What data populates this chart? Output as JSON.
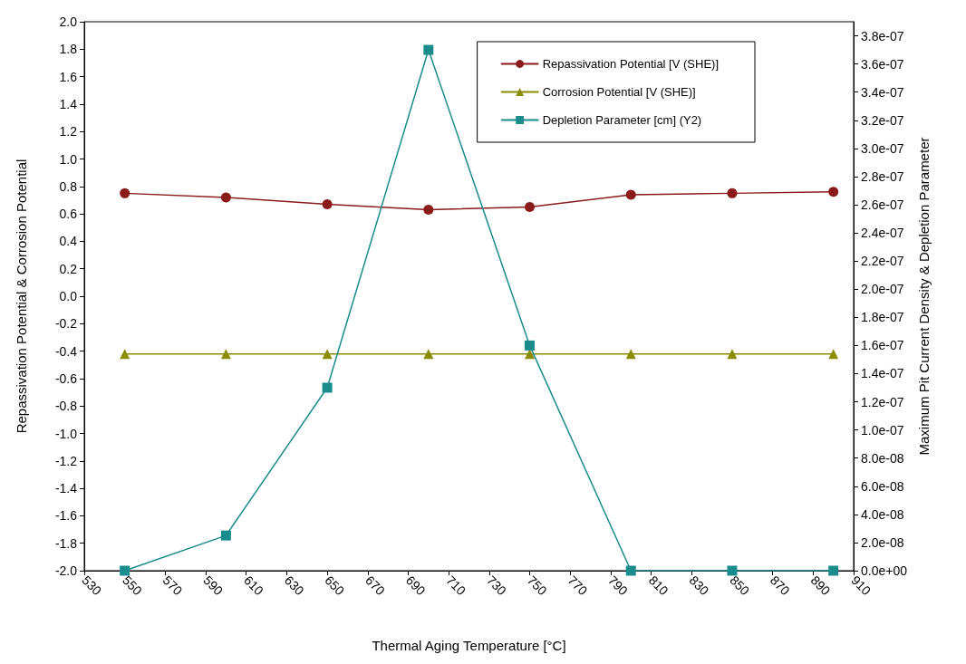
{
  "chart_data": {
    "type": "line",
    "xlabel": "Thermal Aging Temperature [°C]",
    "ylabel": "Repassivation Potential & Corrosion Potential",
    "y2label": "Maximum Pit Current Density & Depletion Parameter",
    "x": [
      550,
      600,
      650,
      700,
      750,
      800,
      850,
      900
    ],
    "series": [
      {
        "name": "Repassivation Potential [V (SHE)]",
        "color": "#8b1a1a",
        "marker": "circle",
        "values": [
          0.75,
          0.72,
          0.67,
          0.63,
          0.65,
          0.74,
          0.75,
          0.76
        ]
      },
      {
        "name": "Corrosion Potential [V (SHE)]",
        "color": "#8c8c00",
        "marker": "triangle",
        "values": [
          -0.42,
          -0.42,
          -0.42,
          -0.42,
          -0.42,
          -0.42,
          -0.42,
          -0.42
        ]
      },
      {
        "name": "Depletion Parameter [cm] (Y2)",
        "color": "#1a8c8c",
        "marker": "square",
        "axis": "y2",
        "values": [
          0,
          2.5e-08,
          1.3e-07,
          3.7e-07,
          1.6e-07,
          0,
          0,
          0
        ]
      }
    ],
    "xlim": [
      530,
      910
    ],
    "xticks": [
      530,
      550,
      570,
      590,
      610,
      630,
      650,
      670,
      690,
      710,
      730,
      750,
      770,
      790,
      810,
      830,
      850,
      870,
      890,
      910
    ],
    "ylim": [
      -2,
      2
    ],
    "yticks": [
      {
        "value": -2,
        "label": "-2.0"
      },
      {
        "value": -1.8,
        "label": "-1.8"
      },
      {
        "value": -1.6,
        "label": "-1.6"
      },
      {
        "value": -1.4,
        "label": "-1.4"
      },
      {
        "value": -1.2,
        "label": "-1.2"
      },
      {
        "value": -1,
        "label": "-1.0"
      },
      {
        "value": -0.8,
        "label": "-0.8"
      },
      {
        "value": -0.6,
        "label": "-0.6"
      },
      {
        "value": -0.4,
        "label": "-0.4"
      },
      {
        "value": -0.2,
        "label": "-0.2"
      },
      {
        "value": 0,
        "label": "0.0"
      },
      {
        "value": 0.2,
        "label": "0.2"
      },
      {
        "value": 0.4,
        "label": "0.4"
      },
      {
        "value": 0.6,
        "label": "0.6"
      },
      {
        "value": 0.8,
        "label": "0.8"
      },
      {
        "value": 1,
        "label": "1.0"
      },
      {
        "value": 1.2,
        "label": "1.2"
      },
      {
        "value": 1.4,
        "label": "1.4"
      },
      {
        "value": 1.6,
        "label": "1.6"
      },
      {
        "value": 1.8,
        "label": "1.8"
      },
      {
        "value": 2,
        "label": "2.0"
      }
    ],
    "y2lim": [
      0,
      3.9e-07
    ],
    "y2ticks": [
      {
        "value": 0,
        "label": "0.0e+00"
      },
      {
        "value": 2e-08,
        "label": "2.0e-08"
      },
      {
        "value": 4e-08,
        "label": "4.0e-08"
      },
      {
        "value": 6e-08,
        "label": "6.0e-08"
      },
      {
        "value": 8e-08,
        "label": "8.0e-08"
      },
      {
        "value": 1e-07,
        "label": "1.0e-07"
      },
      {
        "value": 1.2e-07,
        "label": "1.2e-07"
      },
      {
        "value": 1.4e-07,
        "label": "1.4e-07"
      },
      {
        "value": 1.6e-07,
        "label": "1.6e-07"
      },
      {
        "value": 1.8e-07,
        "label": "1.8e-07"
      },
      {
        "value": 2e-07,
        "label": "2.0e-07"
      },
      {
        "value": 2.2e-07,
        "label": "2.2e-07"
      },
      {
        "value": 2.4e-07,
        "label": "2.4e-07"
      },
      {
        "value": 2.6e-07,
        "label": "2.6e-07"
      },
      {
        "value": 2.8e-07,
        "label": "2.8e-07"
      },
      {
        "value": 3e-07,
        "label": "3.0e-07"
      },
      {
        "value": 3.2e-07,
        "label": "3.2e-07"
      },
      {
        "value": 3.4e-07,
        "label": "3.4e-07"
      },
      {
        "value": 3.6e-07,
        "label": "3.6e-07"
      },
      {
        "value": 3.8e-07,
        "label": "3.8e-07"
      }
    ],
    "grid": false,
    "legend": "top right",
    "line_style": "solid"
  }
}
